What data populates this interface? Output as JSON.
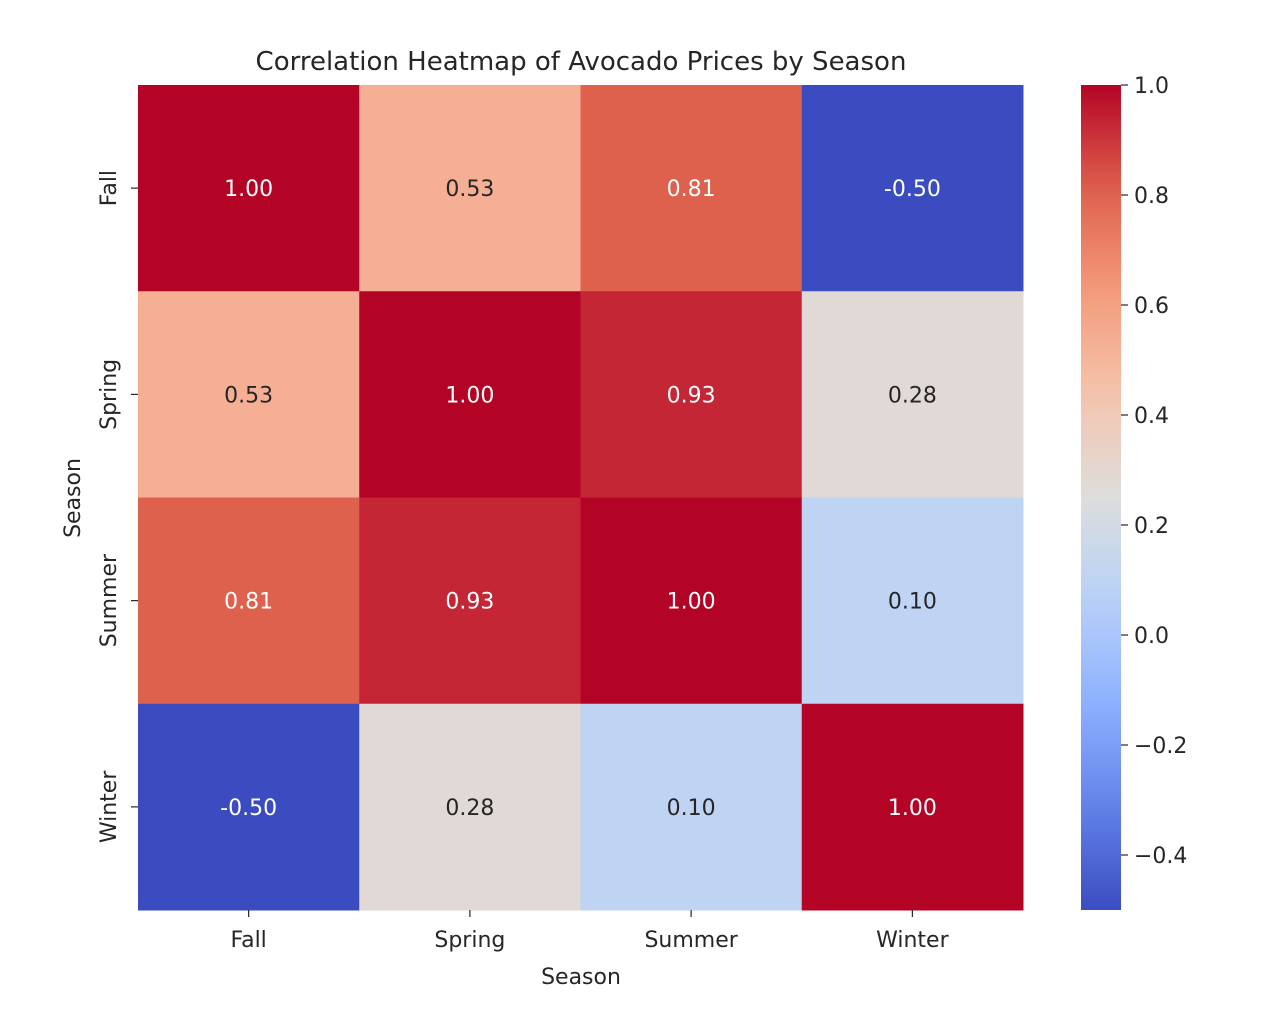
{
  "chart_data": {
    "type": "heatmap",
    "title": "Correlation Heatmap of Avocado Prices by Season",
    "xlabel": "Season",
    "ylabel": "Season",
    "x_categories": [
      "Fall",
      "Spring",
      "Summer",
      "Winter"
    ],
    "y_categories": [
      "Fall",
      "Spring",
      "Summer",
      "Winter"
    ],
    "values": [
      [
        1.0,
        0.53,
        0.81,
        -0.5
      ],
      [
        0.53,
        1.0,
        0.93,
        0.28
      ],
      [
        0.81,
        0.93,
        1.0,
        0.1
      ],
      [
        -0.5,
        0.28,
        0.1,
        1.0
      ]
    ],
    "value_format": "2 decimals",
    "colormap": "coolwarm",
    "color_range": [
      -0.5,
      1.0
    ],
    "colorbar": {
      "ticks": [
        1.0,
        0.8,
        0.6,
        0.4,
        0.2,
        0.0,
        -0.2,
        -0.4
      ],
      "tick_labels": [
        "1.0",
        "0.8",
        "0.6",
        "0.4",
        "0.2",
        "0.0",
        "−0.2",
        "−0.4"
      ]
    },
    "grid": false,
    "legend": "colorbar right"
  }
}
